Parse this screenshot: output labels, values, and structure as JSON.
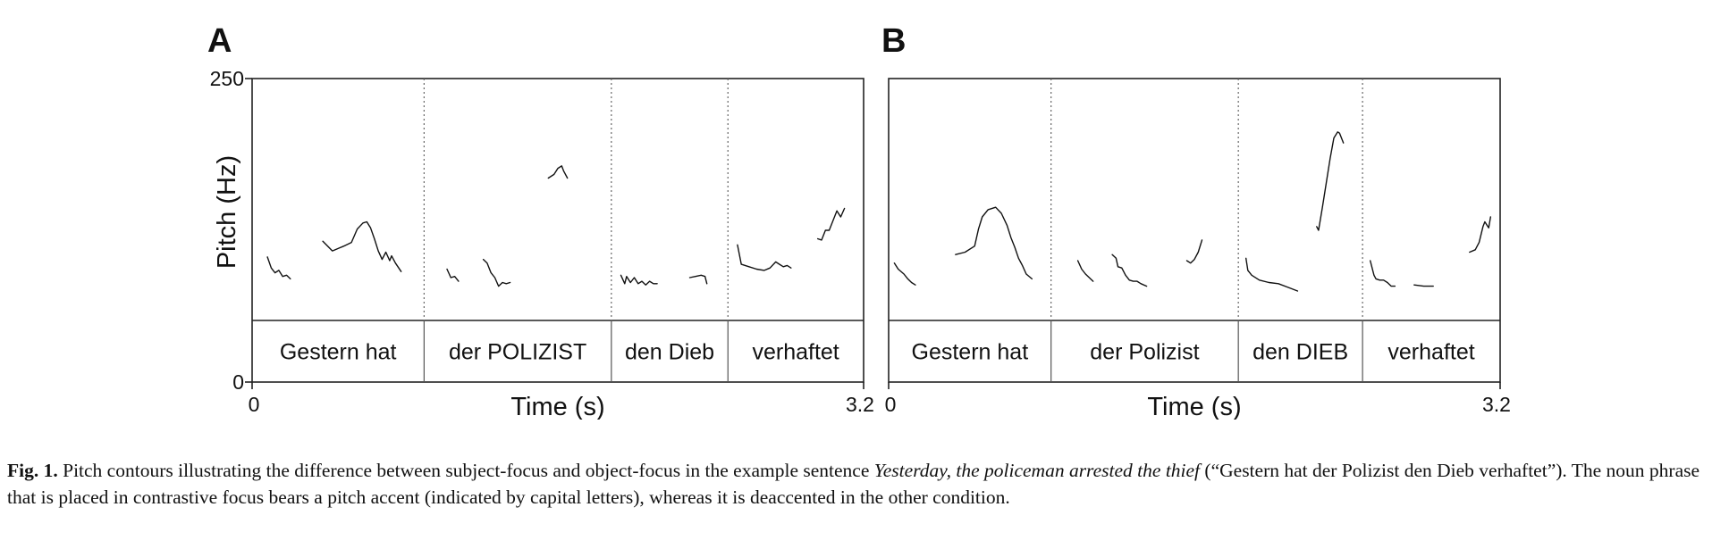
{
  "chart_data": [
    {
      "type": "line",
      "panel": "A",
      "xlabel": "Time (s)",
      "ylabel": "Pitch (Hz)",
      "xlim": [
        0,
        3.2
      ],
      "ylim": [
        0,
        250
      ],
      "x_ticks": [
        "0",
        "3.2"
      ],
      "y_ticks": [
        "250",
        "0"
      ],
      "words": [
        {
          "label": "Gestern hat",
          "start": 0.0,
          "end": 0.9
        },
        {
          "label": "der POLIZIST",
          "start": 0.9,
          "end": 1.88
        },
        {
          "label": "den Dieb",
          "start": 1.88,
          "end": 2.49
        },
        {
          "label": "verhaftet",
          "start": 2.49,
          "end": 3.2
        }
      ],
      "segments": [
        {
          "x": [
            0.08,
            0.1,
            0.12,
            0.14,
            0.16,
            0.18,
            0.2
          ],
          "y": [
            103,
            94,
            90,
            92,
            87,
            88,
            85
          ]
        },
        {
          "x": [
            0.37,
            0.42,
            0.48,
            0.52,
            0.55,
            0.58,
            0.6,
            0.62,
            0.64,
            0.66,
            0.68,
            0.7,
            0.72,
            0.73,
            0.75,
            0.78
          ],
          "y": [
            116,
            108,
            112,
            115,
            126,
            131,
            132,
            127,
            118,
            108,
            101,
            107,
            100,
            104,
            98,
            91
          ]
        },
        {
          "x": [
            1.02,
            1.04,
            1.06,
            1.08
          ],
          "y": [
            93,
            86,
            87,
            83
          ]
        },
        {
          "x": [
            1.21,
            1.23,
            1.25,
            1.27,
            1.29,
            1.31,
            1.33,
            1.35
          ],
          "y": [
            101,
            98,
            90,
            86,
            79,
            82,
            81,
            82
          ]
        },
        {
          "x": [
            1.55,
            1.58,
            1.6,
            1.62,
            1.63,
            1.65
          ],
          "y": [
            168,
            171,
            176,
            178,
            174,
            168
          ]
        },
        {
          "x": [
            1.93,
            1.95,
            1.96,
            1.98,
            2.0,
            2.02,
            2.04,
            2.06,
            2.08,
            2.1,
            2.12
          ],
          "y": [
            88,
            81,
            87,
            82,
            86,
            81,
            83,
            80,
            83,
            81,
            81
          ]
        },
        {
          "x": [
            2.29,
            2.32,
            2.35,
            2.37,
            2.38
          ],
          "y": [
            86,
            87,
            88,
            87,
            81
          ]
        },
        {
          "x": [
            2.54,
            2.56,
            2.6,
            2.64,
            2.68,
            2.71,
            2.74,
            2.76,
            2.78,
            2.8,
            2.82
          ],
          "y": [
            113,
            97,
            95,
            93,
            92,
            94,
            99,
            97,
            95,
            96,
            94
          ]
        },
        {
          "x": [
            2.96,
            2.98,
            3.0,
            3.02,
            3.04,
            3.06,
            3.08,
            3.1
          ],
          "y": [
            118,
            117,
            125,
            125,
            133,
            141,
            136,
            143
          ]
        }
      ],
      "colors": {
        "contour": "#111111",
        "frame": "#222222"
      }
    },
    {
      "type": "line",
      "panel": "B",
      "xlabel": "Time (s)",
      "ylabel": "",
      "xlim": [
        0,
        3.2
      ],
      "ylim": [
        0,
        250
      ],
      "x_ticks": [
        "0",
        "3.2"
      ],
      "y_ticks": [],
      "words": [
        {
          "label": "Gestern hat",
          "start": 0.0,
          "end": 0.85
        },
        {
          "label": "der Polizist",
          "start": 0.85,
          "end": 1.83
        },
        {
          "label": "den DIEB",
          "start": 1.83,
          "end": 2.48
        },
        {
          "label": "verhaftet",
          "start": 2.48,
          "end": 3.2
        }
      ],
      "segments": [
        {
          "x": [
            0.03,
            0.05,
            0.08,
            0.1,
            0.12,
            0.14
          ],
          "y": [
            98,
            93,
            89,
            85,
            82,
            80
          ]
        },
        {
          "x": [
            0.35,
            0.4,
            0.45,
            0.47,
            0.49,
            0.52,
            0.56,
            0.59,
            0.62,
            0.64,
            0.66,
            0.68,
            0.7,
            0.72,
            0.75
          ],
          "y": [
            105,
            107,
            112,
            126,
            136,
            142,
            144,
            139,
            129,
            119,
            111,
            102,
            96,
            89,
            85
          ]
        },
        {
          "x": [
            0.99,
            1.01,
            1.03,
            1.05,
            1.07
          ],
          "y": [
            100,
            93,
            89,
            86,
            83
          ]
        },
        {
          "x": [
            1.17,
            1.19,
            1.2,
            1.22,
            1.24,
            1.26,
            1.28,
            1.3,
            1.32,
            1.35
          ],
          "y": [
            105,
            102,
            95,
            94,
            88,
            84,
            83,
            83,
            81,
            79
          ]
        },
        {
          "x": [
            1.56,
            1.58,
            1.6,
            1.62,
            1.64
          ],
          "y": [
            100,
            98,
            101,
            107,
            117
          ]
        },
        {
          "x": [
            1.87,
            1.88,
            1.9,
            1.94,
            1.99,
            2.04,
            2.09,
            2.14
          ],
          "y": [
            102,
            92,
            88,
            84,
            82,
            81,
            78,
            75
          ]
        },
        {
          "x": [
            2.24,
            2.25,
            2.27,
            2.29,
            2.31,
            2.33,
            2.35,
            2.36,
            2.38
          ],
          "y": [
            128,
            125,
            144,
            164,
            184,
            201,
            206,
            205,
            197
          ]
        },
        {
          "x": [
            2.52,
            2.54,
            2.55,
            2.57,
            2.59,
            2.61,
            2.63,
            2.65
          ],
          "y": [
            100,
            88,
            85,
            84,
            84,
            82,
            79,
            79
          ]
        },
        {
          "x": [
            2.75,
            2.8,
            2.85
          ],
          "y": [
            80,
            79,
            79
          ]
        },
        {
          "x": [
            3.04,
            3.07,
            3.09,
            3.11,
            3.12,
            3.14,
            3.15
          ],
          "y": [
            107,
            109,
            115,
            128,
            132,
            127,
            136
          ]
        }
      ],
      "colors": {
        "contour": "#111111",
        "frame": "#222222"
      }
    }
  ],
  "caption": {
    "label": "Fig. 1.",
    "text_before": " Pitch contours illustrating the difference between subject-focus and object-focus in the example sentence ",
    "italic": "Yesterday, the policeman arrested the thief",
    "text_after": " (“Gestern hat der Polizist den Dieb verhaftet”). The noun phrase that is placed in contrastive focus bears a pitch accent (indicated by capital letters), whereas it is deaccented in the other condition."
  }
}
